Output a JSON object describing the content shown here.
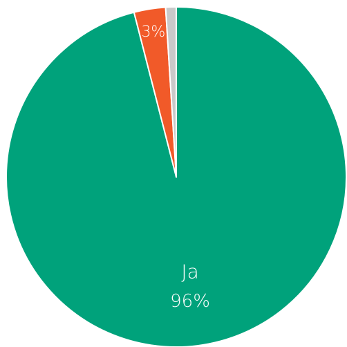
{
  "chart_data": {
    "type": "pie",
    "slices": [
      {
        "label": "Ja",
        "value": 96,
        "display_label": "96%",
        "color": "#00A27B"
      },
      {
        "label": "",
        "value": 3,
        "display_label": "3%",
        "color": "#F15A29"
      },
      {
        "label": "",
        "value": 1,
        "display_label": "",
        "color": "#C9C9C9"
      }
    ],
    "start_angle_deg": 0,
    "direction": "clockwise"
  }
}
